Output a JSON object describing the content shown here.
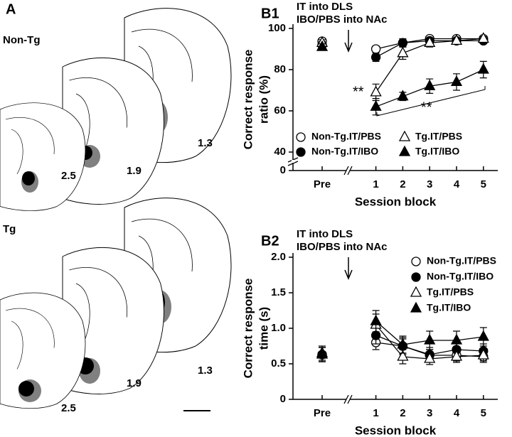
{
  "panel_a": {
    "label": "A",
    "groups": [
      {
        "title": "Non-Tg",
        "levels": [
          "2.5",
          "1.9",
          "1.3"
        ]
      },
      {
        "title": "Tg",
        "levels": [
          "2.5",
          "1.9",
          "1.3"
        ]
      }
    ]
  },
  "chart_data": [
    {
      "type": "line",
      "panel_label": "B1",
      "annotations": [
        "IT into DLS",
        "IBO/PBS into NAc"
      ],
      "significance": [
        "**",
        "**"
      ],
      "ylabel": [
        "Correct response",
        "ratio (%)"
      ],
      "xlabel": "Session block",
      "categories": [
        "Pre",
        null,
        "1",
        "2",
        "3",
        "4",
        "5"
      ],
      "ylim": [
        40,
        100
      ],
      "yticks": [
        40,
        60,
        80,
        100
      ],
      "y_break_tick": 0,
      "legend": "lower right",
      "series": [
        {
          "name": "Non-Tg.IT/PBS",
          "color": "#000000",
          "marker": "circle",
          "filled": false,
          "values": [
            93.8,
            null,
            90,
            93,
            95,
            95,
            95
          ],
          "errors": [
            1.5,
            null,
            1.5,
            1.5,
            1,
            1,
            1
          ]
        },
        {
          "name": "Non-Tg.IT/IBO",
          "color": "#000000",
          "marker": "circle",
          "filled": true,
          "values": [
            92,
            null,
            86,
            93,
            94,
            94,
            94
          ],
          "errors": [
            1.5,
            null,
            2,
            2,
            1,
            1,
            1
          ]
        },
        {
          "name": "Tg.IT/PBS",
          "color": "#000000",
          "marker": "triangle",
          "filled": false,
          "values": [
            93,
            null,
            69,
            88,
            93,
            94,
            95
          ],
          "errors": [
            1.5,
            null,
            4,
            3,
            2,
            1,
            1
          ]
        },
        {
          "name": "Tg.IT/IBO",
          "color": "#000000",
          "marker": "triangle",
          "filled": true,
          "values": [
            91,
            null,
            62,
            67,
            72,
            74,
            80
          ],
          "errors": [
            1.5,
            null,
            4,
            2,
            3.5,
            4,
            4
          ]
        }
      ]
    },
    {
      "type": "line",
      "panel_label": "B2",
      "annotations": [
        "IT into DLS",
        "IBO/PBS into NAc"
      ],
      "ylabel": [
        "Correct response",
        "time (s)"
      ],
      "xlabel": "Session block",
      "categories": [
        "Pre",
        null,
        "1",
        "2",
        "3",
        "4",
        "5"
      ],
      "ylim": [
        0,
        2
      ],
      "yticks": [
        0,
        0.5,
        {
          "value": 1,
          "label": "1.0"
        },
        1.5,
        {
          "value": 2,
          "label": "2.0"
        }
      ],
      "legend": "upper right",
      "series": [
        {
          "name": "Non-Tg.IT/PBS",
          "color": "#000000",
          "marker": "circle",
          "filled": false,
          "values": [
            0.63,
            null,
            0.8,
            0.75,
            0.62,
            0.62,
            0.6
          ],
          "errors": [
            0.1,
            null,
            0.1,
            0.1,
            0.08,
            0.08,
            0.08
          ]
        },
        {
          "name": "Non-Tg.IT/IBO",
          "color": "#000000",
          "marker": "circle",
          "filled": true,
          "values": [
            0.63,
            null,
            0.9,
            0.75,
            0.63,
            0.7,
            0.68
          ],
          "errors": [
            0.1,
            null,
            0.12,
            0.12,
            0.1,
            0.1,
            0.1
          ]
        },
        {
          "name": "Tg.IT/PBS",
          "color": "#000000",
          "marker": "triangle",
          "filled": false,
          "values": [
            0.65,
            null,
            1.05,
            0.6,
            0.57,
            0.6,
            0.62
          ],
          "errors": [
            0.1,
            null,
            0.15,
            0.1,
            0.08,
            0.08,
            0.08
          ]
        },
        {
          "name": "Tg.IT/IBO",
          "color": "#000000",
          "marker": "triangle",
          "filled": true,
          "values": [
            0.63,
            null,
            1.1,
            0.77,
            0.83,
            0.83,
            0.88
          ],
          "errors": [
            0.1,
            null,
            0.15,
            0.12,
            0.13,
            0.13,
            0.13
          ]
        }
      ]
    }
  ]
}
